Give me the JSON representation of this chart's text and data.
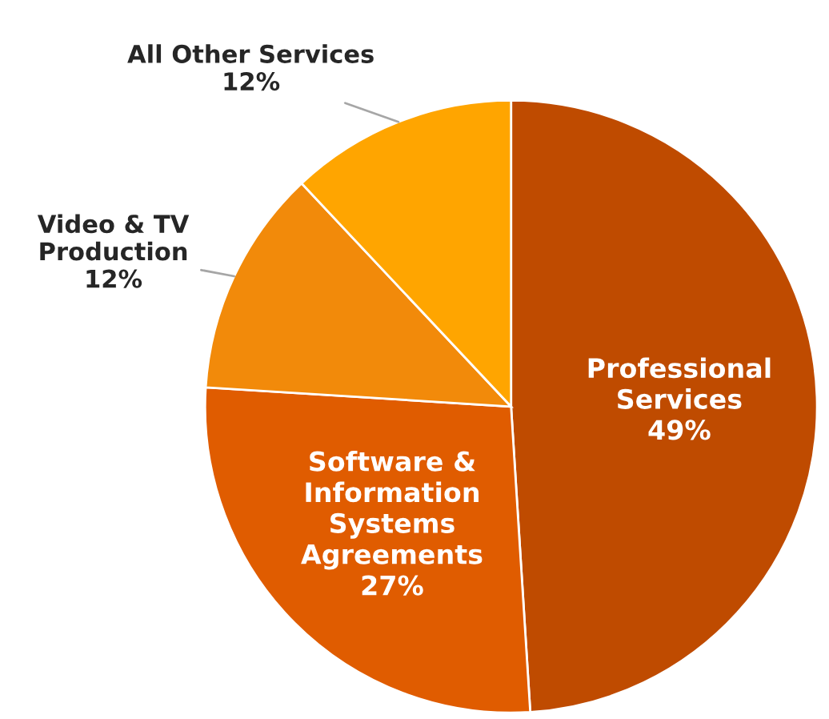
{
  "chart_data": {
    "type": "pie",
    "categories": [
      "Professional Services",
      "Software & Information Systems Agreements",
      "Video & TV Production",
      "All Other Services"
    ],
    "values": [
      49,
      27,
      12,
      12
    ],
    "value_labels": [
      "49%",
      "27%",
      "12%",
      "12%"
    ],
    "colors": [
      "#bf4b00",
      "#e05c00",
      "#f28a0a",
      "#ffa500"
    ],
    "legend": false
  }
}
